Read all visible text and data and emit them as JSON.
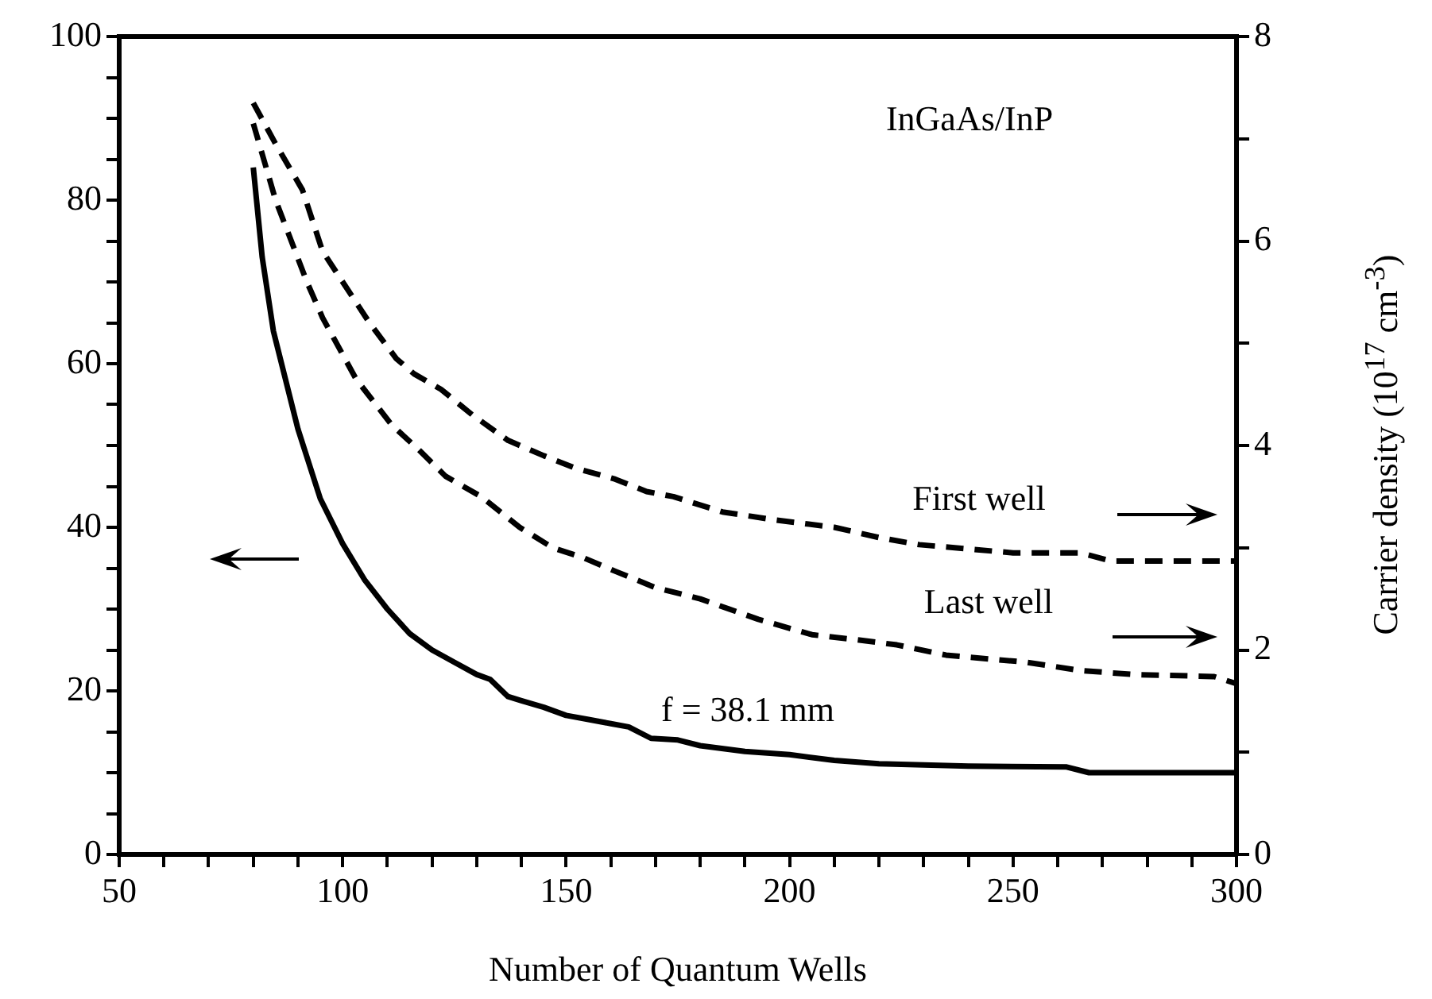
{
  "chart_data": {
    "type": "line",
    "xlabel": "Number of Quantum Wells",
    "y2label": "Carrier density (10$^{17}$ cm$^{-3}$)",
    "annotations": [
      "InGaAs/InP",
      "f = 38.1 mm",
      "First well",
      "Last well"
    ],
    "xlim": [
      50,
      300
    ],
    "xticks": [
      50,
      {
        "value": 60,
        "label": null
      },
      {
        "value": 70,
        "label": null
      },
      {
        "value": 80,
        "label": null
      },
      {
        "value": 90,
        "label": null
      },
      100,
      {
        "value": 110,
        "label": null
      },
      {
        "value": 120,
        "label": null
      },
      {
        "value": 130,
        "label": null
      },
      {
        "value": 140,
        "label": null
      },
      150,
      {
        "value": 160,
        "label": null
      },
      {
        "value": 170,
        "label": null
      },
      {
        "value": 180,
        "label": null
      },
      {
        "value": 190,
        "label": null
      },
      200,
      {
        "value": 210,
        "label": null
      },
      {
        "value": 220,
        "label": null
      },
      {
        "value": 230,
        "label": null
      },
      {
        "value": 240,
        "label": null
      },
      250,
      {
        "value": 260,
        "label": null
      },
      {
        "value": 270,
        "label": null
      },
      {
        "value": 280,
        "label": null
      },
      {
        "value": 290,
        "label": null
      },
      300
    ],
    "ylim": [
      0,
      100
    ],
    "yticks": [
      0,
      {
        "value": 5,
        "label": null
      },
      {
        "value": 10,
        "label": null
      },
      {
        "value": 15,
        "label": null
      },
      20,
      {
        "value": 25,
        "label": null
      },
      {
        "value": 30,
        "label": null
      },
      {
        "value": 35,
        "label": null
      },
      40,
      {
        "value": 45,
        "label": null
      },
      {
        "value": 50,
        "label": null
      },
      {
        "value": 55,
        "label": null
      },
      60,
      {
        "value": 65,
        "label": null
      },
      {
        "value": 70,
        "label": null
      },
      {
        "value": 75,
        "label": null
      },
      80,
      {
        "value": 85,
        "label": null
      },
      {
        "value": 90,
        "label": null
      },
      {
        "value": 95,
        "label": null
      },
      100
    ],
    "y2lim": [
      0,
      8
    ],
    "y2ticks": [
      0,
      {
        "value": 1,
        "label": null
      },
      2,
      {
        "value": 3,
        "label": null
      },
      4,
      {
        "value": 5,
        "label": null
      },
      6,
      {
        "value": 7,
        "label": null
      },
      8
    ],
    "grid": false,
    "legend": false,
    "marker": "none",
    "series": [
      {
        "color": "#000000",
        "line_style": "solid",
        "x": [
          80,
          82,
          84.5,
          90,
          95,
          100,
          105,
          110,
          115,
          120,
          125,
          130,
          133,
          137,
          140,
          145,
          150,
          155,
          160,
          164,
          169,
          175,
          180,
          190,
          200,
          210,
          220,
          240,
          262,
          267,
          300
        ],
        "values": [
          84,
          73,
          64,
          52,
          43.5,
          38,
          33.5,
          30,
          27,
          25,
          23.5,
          22,
          21.4,
          19.3,
          18.8,
          18,
          17,
          16.5,
          16,
          15.6,
          14.2,
          14,
          13.3,
          12.6,
          12.2,
          11.5,
          11.1,
          10.8,
          10.7,
          10,
          10
        ]
      },
      {
        "color": "#000000",
        "line_style": "dashed",
        "axis": "y2",
        "x": [
          80,
          85,
          91,
          95.5,
          100,
          106,
          112,
          116,
          122,
          129,
          137,
          145,
          152,
          161,
          168,
          174,
          185,
          197,
          210,
          220,
          229,
          250,
          265,
          272,
          300
        ],
        "values": [
          7.35,
          6.95,
          6.5,
          5.9,
          5.6,
          5.2,
          4.85,
          4.7,
          4.55,
          4.3,
          4.05,
          3.9,
          3.78,
          3.67,
          3.55,
          3.5,
          3.35,
          3.27,
          3.2,
          3.1,
          3.03,
          2.95,
          2.95,
          2.87,
          2.87
        ]
      },
      {
        "color": "#000000",
        "line_style": "dashed",
        "axis": "y2",
        "x": [
          80,
          85,
          92,
          95.5,
          103,
          111,
          117,
          123,
          131,
          139.6,
          147,
          154,
          161,
          170,
          180,
          193,
          205,
          215,
          224,
          235,
          253,
          265,
          277,
          295,
          300
        ],
        "values": [
          7.15,
          6.4,
          5.6,
          5.25,
          4.65,
          4.2,
          3.96,
          3.7,
          3.5,
          3.2,
          3.0,
          2.9,
          2.77,
          2.61,
          2.5,
          2.3,
          2.15,
          2.1,
          2.05,
          1.95,
          1.88,
          1.8,
          1.76,
          1.74,
          1.67
        ]
      }
    ]
  }
}
